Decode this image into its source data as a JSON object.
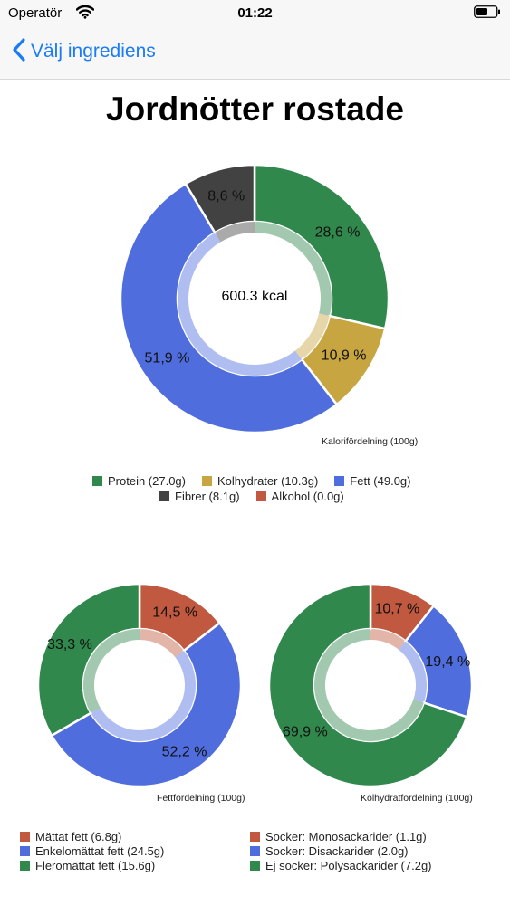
{
  "status_bar": {
    "carrier": "Operatör",
    "time": "01:22"
  },
  "nav": {
    "back_label": "Välj ingrediens"
  },
  "page_title": "Jordnötter rostade",
  "colors": {
    "green": "#30884d",
    "gold": "#c7a540",
    "blue": "#4f6ddd",
    "dark": "#424242",
    "red": "#c0593f",
    "accent": "#1a7cf5"
  },
  "charts": {
    "calories": {
      "caption": "Kalorifördelning (100g)",
      "center_text": "600.3 kcal",
      "chart_data": {
        "type": "pie",
        "slices": [
          {
            "label": "28,6 %",
            "value": 28.6,
            "color": "#30884d"
          },
          {
            "label": "10,9 %",
            "value": 10.9,
            "color": "#c7a540"
          },
          {
            "label": "51,9 %",
            "value": 51.9,
            "color": "#4f6ddd"
          },
          {
            "label": "8,6 %",
            "value": 8.6,
            "color": "#424242"
          }
        ]
      },
      "legend": [
        {
          "label": "Protein (27.0g)",
          "color": "#30884d"
        },
        {
          "label": "Kolhydrater (10.3g)",
          "color": "#c7a540"
        },
        {
          "label": "Fett (49.0g)",
          "color": "#4f6ddd"
        },
        {
          "label": "Fibrer (8.1g)",
          "color": "#424242"
        },
        {
          "label": "Alkohol (0.0g)",
          "color": "#c0593f"
        }
      ]
    },
    "fat": {
      "caption": "Fettfördelning (100g)",
      "chart_data": {
        "type": "pie",
        "slices": [
          {
            "label": "14,5 %",
            "value": 14.5,
            "color": "#c0593f"
          },
          {
            "label": "52,2 %",
            "value": 52.2,
            "color": "#4f6ddd"
          },
          {
            "label": "33,3 %",
            "value": 33.3,
            "color": "#30884d"
          }
        ]
      },
      "legend": [
        {
          "label": "Mättat fett (6.8g)",
          "color": "#c0593f"
        },
        {
          "label": "Enkelomättat fett (24.5g)",
          "color": "#4f6ddd"
        },
        {
          "label": "Fleromättat fett (15.6g)",
          "color": "#30884d"
        }
      ]
    },
    "carbs": {
      "caption": "Kolhydratfördelning (100g)",
      "chart_data": {
        "type": "pie",
        "slices": [
          {
            "label": "10,7 %",
            "value": 10.7,
            "color": "#c0593f"
          },
          {
            "label": "19,4 %",
            "value": 19.4,
            "color": "#4f6ddd"
          },
          {
            "label": "69,9 %",
            "value": 69.9,
            "color": "#30884d"
          }
        ]
      },
      "legend": [
        {
          "label": "Socker: Monosackarider (1.1g)",
          "color": "#c0593f"
        },
        {
          "label": "Socker: Disackarider (2.0g)",
          "color": "#4f6ddd"
        },
        {
          "label": "Ej socker: Polysackarider (7.2g)",
          "color": "#30884d"
        }
      ]
    }
  }
}
